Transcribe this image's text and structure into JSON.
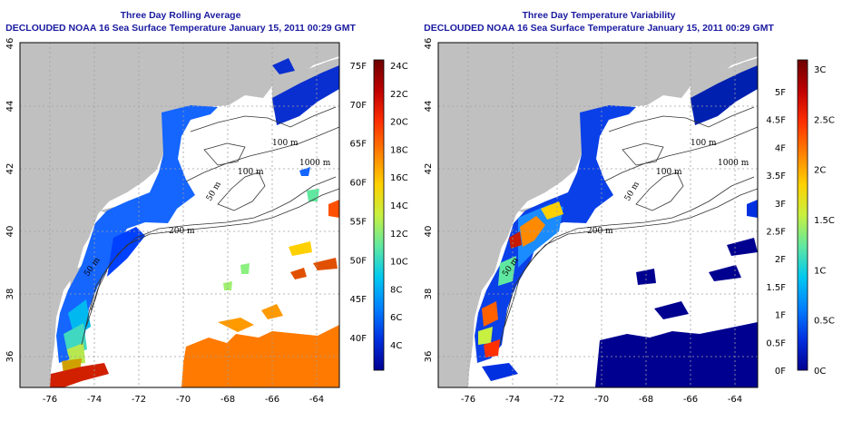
{
  "colors": {
    "title": "#1a1aa0",
    "land": "#c0c0c0",
    "ocean": "#ffffff",
    "grid": "#a0a0a0",
    "isobath": "#333333"
  },
  "panels": [
    {
      "title": "Three Day Rolling Average",
      "subtitle": "DECLOUDED NOAA 16 Sea Surface Temperature January 15, 2011 00:29 GMT",
      "x_ticks": [
        "-76",
        "-74",
        "-72",
        "-70",
        "-68",
        "-66",
        "-64"
      ],
      "y_ticks": [
        "36",
        "38",
        "40",
        "42",
        "44",
        "46"
      ],
      "isobath_labels": [
        "100 m",
        "100 m",
        "1000 m",
        "50 m",
        "200 m",
        "50 m"
      ],
      "colorbar": {
        "palette": [
          "#6e0000",
          "#c00000",
          "#ff3000",
          "#ff8000",
          "#ffd000",
          "#c8f040",
          "#60e8a0",
          "#00c8f0",
          "#0080ff",
          "#0030e0",
          "#000090"
        ],
        "c_labels": [
          "24C",
          "22C",
          "20C",
          "18C",
          "16C",
          "14C",
          "12C",
          "10C",
          "8C",
          "6C",
          "4C"
        ],
        "f_labels": [
          "75F",
          "70F",
          "65F",
          "60F",
          "55F",
          "50F",
          "45F",
          "40F"
        ]
      }
    },
    {
      "title": "Three Day Temperature Variability",
      "subtitle": "DECLOUDED NOAA 16 Sea Surface Temperature January 15, 2011 00:29 GMT",
      "x_ticks": [
        "-76",
        "-74",
        "-72",
        "-70",
        "-68",
        "-66",
        "-64"
      ],
      "y_ticks": [
        "36",
        "38",
        "40",
        "42",
        "44",
        "46"
      ],
      "isobath_labels": [
        "100 m",
        "100 m",
        "1000 m",
        "50 m",
        "200 m",
        "50 m"
      ],
      "colorbar": {
        "palette": [
          "#6e0000",
          "#c00000",
          "#ff3000",
          "#ff8000",
          "#ffd000",
          "#c8f040",
          "#60e8a0",
          "#00c8f0",
          "#0080ff",
          "#0030e0",
          "#000090"
        ],
        "c_labels": [
          "3C",
          "2.5C",
          "2C",
          "1.5C",
          "1C",
          "0.5C",
          "0C"
        ],
        "f_labels": [
          "5F",
          "4.5F",
          "4F",
          "3.5F",
          "3F",
          "2.5F",
          "2F",
          "1.5F",
          "1F",
          "0.5F",
          "0F"
        ]
      }
    }
  ]
}
